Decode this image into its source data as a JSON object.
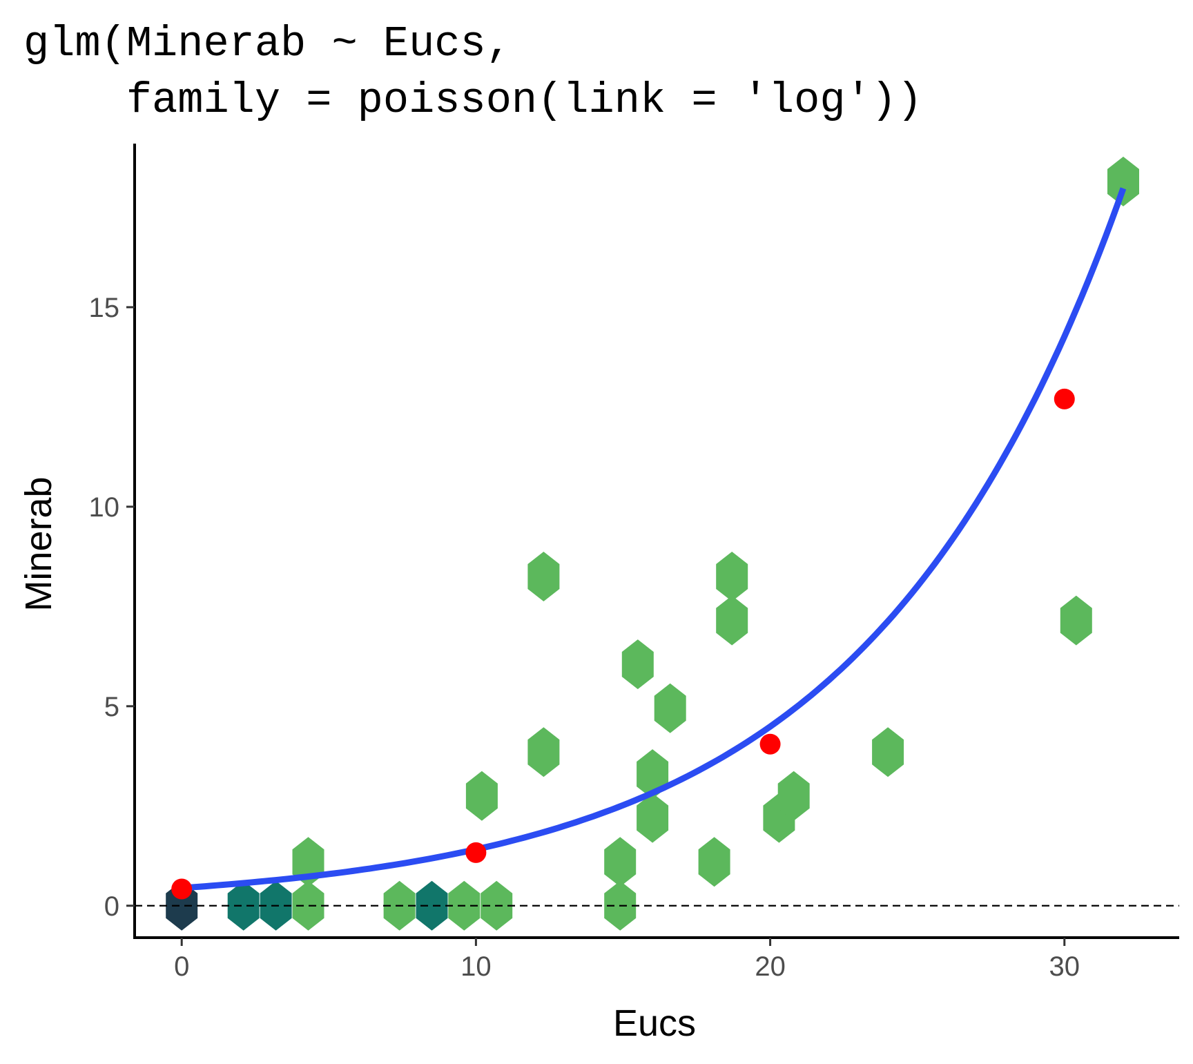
{
  "chart_data": {
    "type": "scatter",
    "title_lines": [
      "glm(Minerab ~ Eucs,",
      "    family = poisson(link = 'log'))"
    ],
    "xlabel": "Eucs",
    "ylabel": "Minerab",
    "xlim": [
      -1.6,
      33.9
    ],
    "ylim": [
      -0.8,
      19.1
    ],
    "x_ticks": [
      0,
      10,
      20,
      30
    ],
    "y_ticks": [
      0,
      5,
      10,
      15
    ],
    "x_tick_labels": [
      "0",
      "10",
      "20",
      "30"
    ],
    "y_tick_labels": [
      "0",
      "5",
      "10",
      "15"
    ],
    "grid": false,
    "reference_line": {
      "y": 0,
      "style": "dashed",
      "color": "#000000"
    },
    "hexbins": [
      {
        "x": 0.0,
        "y": 0,
        "color": "#1d3b4d"
      },
      {
        "x": 2.1,
        "y": 0,
        "color": "#11766a"
      },
      {
        "x": 3.2,
        "y": 0,
        "color": "#11766a"
      },
      {
        "x": 4.3,
        "y": 0,
        "color": "#5cb85c"
      },
      {
        "x": 7.4,
        "y": 0,
        "color": "#5cb85c"
      },
      {
        "x": 8.5,
        "y": 0,
        "color": "#11766a"
      },
      {
        "x": 9.6,
        "y": 0,
        "color": "#5cb85c"
      },
      {
        "x": 10.7,
        "y": 0,
        "color": "#5cb85c"
      },
      {
        "x": 14.9,
        "y": 0,
        "color": "#5cb85c"
      },
      {
        "x": 4.3,
        "y": 1.1,
        "color": "#5cb85c"
      },
      {
        "x": 14.9,
        "y": 1.1,
        "color": "#5cb85c"
      },
      {
        "x": 18.1,
        "y": 1.1,
        "color": "#5cb85c"
      },
      {
        "x": 16.0,
        "y": 2.2,
        "color": "#5cb85c"
      },
      {
        "x": 20.3,
        "y": 2.2,
        "color": "#5cb85c"
      },
      {
        "x": 10.2,
        "y": 2.75,
        "color": "#5cb85c"
      },
      {
        "x": 20.8,
        "y": 2.75,
        "color": "#5cb85c"
      },
      {
        "x": 16.0,
        "y": 3.3,
        "color": "#5cb85c"
      },
      {
        "x": 12.3,
        "y": 3.85,
        "color": "#5cb85c"
      },
      {
        "x": 24.0,
        "y": 3.85,
        "color": "#5cb85c"
      },
      {
        "x": 16.6,
        "y": 4.95,
        "color": "#5cb85c"
      },
      {
        "x": 15.5,
        "y": 6.05,
        "color": "#5cb85c"
      },
      {
        "x": 18.7,
        "y": 7.15,
        "color": "#5cb85c"
      },
      {
        "x": 30.4,
        "y": 7.15,
        "color": "#5cb85c"
      },
      {
        "x": 12.3,
        "y": 8.25,
        "color": "#5cb85c"
      },
      {
        "x": 18.7,
        "y": 8.25,
        "color": "#5cb85c"
      },
      {
        "x": 32.0,
        "y": 18.15,
        "color": "#5cb85c"
      }
    ],
    "series": [
      {
        "type": "line",
        "color": "#2b4cf2",
        "model": "poisson-log",
        "intercept": -0.81,
        "slope": 0.1156,
        "x_range": [
          0,
          32
        ]
      },
      {
        "type": "points",
        "color": "#ff0000",
        "x": [
          0,
          10,
          20,
          30
        ],
        "y": [
          0.42,
          1.33,
          4.05,
          12.7
        ]
      }
    ]
  }
}
